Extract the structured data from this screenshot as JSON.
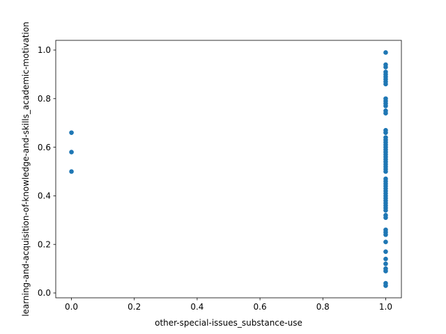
{
  "chart_data": {
    "type": "scatter",
    "title": "",
    "xlabel": "other-special-issues_substance-use",
    "ylabel": "learning-and-acquisition-of-knowledge-and-skills_academic-motivation",
    "xlim": [
      -0.05,
      1.05
    ],
    "ylim": [
      -0.02,
      1.04
    ],
    "x_ticks": [
      0.0,
      0.2,
      0.4,
      0.6,
      0.8,
      1.0
    ],
    "x_tick_labels": [
      "0.0",
      "0.2",
      "0.4",
      "0.6",
      "0.8",
      "1.0"
    ],
    "y_ticks": [
      0.0,
      0.2,
      0.4,
      0.6,
      0.8,
      1.0
    ],
    "y_tick_labels": [
      "0.0",
      "0.2",
      "0.4",
      "0.6",
      "0.8",
      "1.0"
    ],
    "grid": false,
    "legend": "none",
    "marker_color": "#1f77b4",
    "series": [
      {
        "name": "points",
        "points": [
          {
            "x": 0,
            "y": 0.66
          },
          {
            "x": 0,
            "y": 0.58
          },
          {
            "x": 0,
            "y": 0.5
          },
          {
            "x": 1,
            "y": 0.99
          },
          {
            "x": 1,
            "y": 0.94
          },
          {
            "x": 1,
            "y": 0.93
          },
          {
            "x": 1,
            "y": 0.91
          },
          {
            "x": 1,
            "y": 0.9
          },
          {
            "x": 1,
            "y": 0.89
          },
          {
            "x": 1,
            "y": 0.88
          },
          {
            "x": 1,
            "y": 0.87
          },
          {
            "x": 1,
            "y": 0.86
          },
          {
            "x": 1,
            "y": 0.8
          },
          {
            "x": 1,
            "y": 0.79
          },
          {
            "x": 1,
            "y": 0.78
          },
          {
            "x": 1,
            "y": 0.77
          },
          {
            "x": 1,
            "y": 0.75
          },
          {
            "x": 1,
            "y": 0.74
          },
          {
            "x": 1,
            "y": 0.67
          },
          {
            "x": 1,
            "y": 0.66
          },
          {
            "x": 1,
            "y": 0.64
          },
          {
            "x": 1,
            "y": 0.63
          },
          {
            "x": 1,
            "y": 0.62
          },
          {
            "x": 1,
            "y": 0.61
          },
          {
            "x": 1,
            "y": 0.6
          },
          {
            "x": 1,
            "y": 0.59
          },
          {
            "x": 1,
            "y": 0.58
          },
          {
            "x": 1,
            "y": 0.57
          },
          {
            "x": 1,
            "y": 0.56
          },
          {
            "x": 1,
            "y": 0.55
          },
          {
            "x": 1,
            "y": 0.54
          },
          {
            "x": 1,
            "y": 0.53
          },
          {
            "x": 1,
            "y": 0.52
          },
          {
            "x": 1,
            "y": 0.51
          },
          {
            "x": 1,
            "y": 0.5
          },
          {
            "x": 1,
            "y": 0.47
          },
          {
            "x": 1,
            "y": 0.46
          },
          {
            "x": 1,
            "y": 0.45
          },
          {
            "x": 1,
            "y": 0.44
          },
          {
            "x": 1,
            "y": 0.43
          },
          {
            "x": 1,
            "y": 0.42
          },
          {
            "x": 1,
            "y": 0.41
          },
          {
            "x": 1,
            "y": 0.4
          },
          {
            "x": 1,
            "y": 0.39
          },
          {
            "x": 1,
            "y": 0.38
          },
          {
            "x": 1,
            "y": 0.37
          },
          {
            "x": 1,
            "y": 0.36
          },
          {
            "x": 1,
            "y": 0.35
          },
          {
            "x": 1,
            "y": 0.34
          },
          {
            "x": 1,
            "y": 0.32
          },
          {
            "x": 1,
            "y": 0.31
          },
          {
            "x": 1,
            "y": 0.26
          },
          {
            "x": 1,
            "y": 0.25
          },
          {
            "x": 1,
            "y": 0.24
          },
          {
            "x": 1,
            "y": 0.21
          },
          {
            "x": 1,
            "y": 0.17
          },
          {
            "x": 1,
            "y": 0.14
          },
          {
            "x": 1,
            "y": 0.12
          },
          {
            "x": 1,
            "y": 0.1
          },
          {
            "x": 1,
            "y": 0.09
          },
          {
            "x": 1,
            "y": 0.04
          },
          {
            "x": 1,
            "y": 0.03
          }
        ]
      }
    ]
  }
}
